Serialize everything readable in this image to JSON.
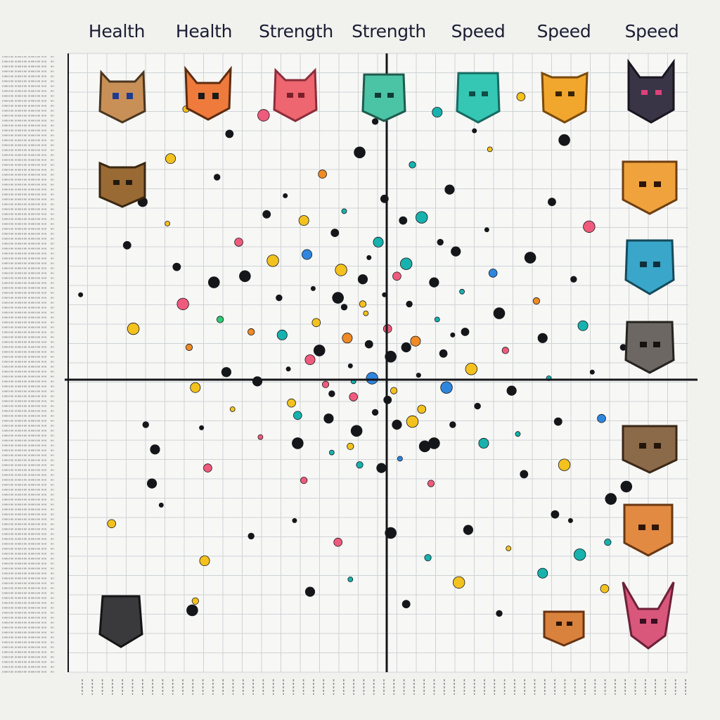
{
  "header_labels": [
    "Health",
    "Health",
    "Strength",
    "Strength",
    "Speed",
    "Speed",
    "Speed"
  ],
  "colors": {
    "background": "#f1f1ee",
    "plot_background": "#f7f7f5",
    "grid": "#cfd3d6",
    "axis": "#15161a",
    "label": "#1b1d33",
    "side_text": "#a7a7a7"
  },
  "chart_data": {
    "type": "scatter",
    "title": "",
    "xlabel": "",
    "ylabel": "",
    "xlim": [
      -10,
      10
    ],
    "ylim": [
      -10,
      10
    ],
    "grid": true,
    "legend": "none",
    "point_colors": [
      "#15161a",
      "#15161a",
      "#15161a",
      "#f4c21e",
      "#ef5b7c",
      "#17b2ae",
      "#2e86de",
      "#f08a24",
      "#8e44ad",
      "#2ecc71"
    ],
    "points_note": "dense cloud centred at origin; individual values estimated",
    "series": [
      {
        "values": [
          [
            -9.6,
            2.2,
            1
          ],
          [
            -8.1,
            3.8,
            0
          ],
          [
            -7.9,
            1.1,
            3
          ],
          [
            -7.5,
            -2.0,
            0
          ],
          [
            -7.2,
            -2.8,
            1
          ],
          [
            -6.8,
            4.5,
            3
          ],
          [
            -6.5,
            3.1,
            0
          ],
          [
            -6.3,
            1.9,
            4
          ],
          [
            -6.1,
            0.5,
            7
          ],
          [
            -5.9,
            -0.8,
            3
          ],
          [
            -5.7,
            -2.1,
            0
          ],
          [
            -5.5,
            -3.4,
            4
          ],
          [
            -5.3,
            2.6,
            0
          ],
          [
            -5.1,
            1.4,
            9
          ],
          [
            -4.9,
            -0.3,
            0
          ],
          [
            -4.7,
            -1.5,
            3
          ],
          [
            -4.5,
            3.9,
            4
          ],
          [
            -4.3,
            2.8,
            0
          ],
          [
            -4.1,
            1.0,
            7
          ],
          [
            -3.9,
            -0.6,
            0
          ],
          [
            -3.8,
            -2.4,
            4
          ],
          [
            -3.6,
            4.8,
            0
          ],
          [
            -3.4,
            3.3,
            3
          ],
          [
            -3.2,
            2.1,
            0
          ],
          [
            -3.1,
            0.9,
            5
          ],
          [
            -2.9,
            -0.2,
            0
          ],
          [
            -2.8,
            -1.3,
            3
          ],
          [
            -2.6,
            -2.6,
            0
          ],
          [
            -2.4,
            -3.8,
            4
          ],
          [
            -2.3,
            3.5,
            6
          ],
          [
            -2.1,
            2.4,
            0
          ],
          [
            -2.0,
            1.3,
            3
          ],
          [
            -1.9,
            0.4,
            0
          ],
          [
            -1.7,
            -0.7,
            4
          ],
          [
            -1.6,
            -1.8,
            0
          ],
          [
            -1.5,
            -2.9,
            5
          ],
          [
            -1.4,
            4.2,
            0
          ],
          [
            -1.2,
            3.0,
            3
          ],
          [
            -1.1,
            1.8,
            0
          ],
          [
            -1.0,
            0.8,
            7
          ],
          [
            -0.9,
            -0.1,
            0
          ],
          [
            -0.8,
            -1.1,
            4
          ],
          [
            -0.7,
            -2.2,
            0
          ],
          [
            -0.6,
            -3.3,
            5
          ],
          [
            -0.5,
            2.7,
            0
          ],
          [
            -0.4,
            1.6,
            3
          ],
          [
            -0.3,
            0.6,
            0
          ],
          [
            -0.2,
            -0.5,
            6
          ],
          [
            -0.1,
            -1.6,
            0
          ],
          [
            0.0,
            3.9,
            5
          ],
          [
            0.2,
            2.2,
            0
          ],
          [
            0.3,
            1.1,
            4
          ],
          [
            0.4,
            0.2,
            0
          ],
          [
            0.5,
            -0.9,
            3
          ],
          [
            0.6,
            -2.0,
            0
          ],
          [
            0.7,
            -3.1,
            6
          ],
          [
            0.8,
            4.6,
            0
          ],
          [
            0.9,
            3.2,
            5
          ],
          [
            1.0,
            1.9,
            0
          ],
          [
            1.2,
            0.7,
            7
          ],
          [
            1.3,
            -0.4,
            0
          ],
          [
            1.4,
            -1.5,
            3
          ],
          [
            1.5,
            -2.7,
            0
          ],
          [
            1.7,
            -3.9,
            4
          ],
          [
            1.8,
            2.6,
            0
          ],
          [
            1.9,
            1.4,
            5
          ],
          [
            2.1,
            0.3,
            0
          ],
          [
            2.2,
            -0.8,
            6
          ],
          [
            2.4,
            -2.0,
            0
          ],
          [
            2.5,
            3.6,
            0
          ],
          [
            2.7,
            2.3,
            5
          ],
          [
            2.8,
            1.0,
            0
          ],
          [
            3.0,
            -0.2,
            3
          ],
          [
            3.2,
            -1.4,
            0
          ],
          [
            3.4,
            -2.6,
            5
          ],
          [
            3.5,
            4.3,
            0
          ],
          [
            3.7,
            2.9,
            6
          ],
          [
            3.9,
            1.6,
            0
          ],
          [
            4.1,
            0.4,
            4
          ],
          [
            4.3,
            -0.9,
            0
          ],
          [
            4.5,
            -2.3,
            5
          ],
          [
            4.7,
            -3.6,
            0
          ],
          [
            4.9,
            3.4,
            0
          ],
          [
            5.1,
            2.0,
            7
          ],
          [
            5.3,
            0.8,
            0
          ],
          [
            5.5,
            -0.5,
            5
          ],
          [
            5.8,
            -1.9,
            0
          ],
          [
            6.0,
            -3.3,
            3
          ],
          [
            6.3,
            2.7,
            0
          ],
          [
            6.6,
            1.2,
            5
          ],
          [
            6.9,
            -0.3,
            0
          ],
          [
            7.2,
            -1.8,
            6
          ],
          [
            7.5,
            -4.4,
            0
          ],
          [
            7.9,
            0.5,
            0
          ],
          [
            8.3,
            -2.6,
            5
          ],
          [
            -3.0,
            5.4,
            0
          ],
          [
            -1.8,
            6.1,
            7
          ],
          [
            -0.6,
            6.8,
            0
          ],
          [
            1.1,
            6.4,
            5
          ],
          [
            2.3,
            5.6,
            0
          ],
          [
            3.6,
            6.9,
            3
          ],
          [
            5.6,
            5.2,
            0
          ],
          [
            6.8,
            4.4,
            4
          ],
          [
            -5.2,
            6.0,
            0
          ],
          [
            -6.7,
            6.6,
            3
          ],
          [
            -2.7,
            -5.1,
            0
          ],
          [
            -1.3,
            -5.8,
            4
          ],
          [
            0.4,
            -5.5,
            0
          ],
          [
            1.6,
            -6.3,
            5
          ],
          [
            2.9,
            -5.4,
            0
          ],
          [
            4.2,
            -6.0,
            3
          ],
          [
            5.7,
            -4.9,
            0
          ],
          [
            6.5,
            -6.2,
            5
          ],
          [
            -4.1,
            -5.6,
            0
          ],
          [
            -5.6,
            -6.4,
            3
          ],
          [
            -7.0,
            -4.6,
            0
          ],
          [
            -8.6,
            -5.2,
            3
          ],
          [
            -6.0,
            -8.0,
            0
          ],
          [
            -5.9,
            -7.7,
            3
          ],
          [
            -2.2,
            -7.4,
            0
          ],
          [
            -0.9,
            -7.0,
            5
          ],
          [
            0.9,
            -7.8,
            0
          ],
          [
            2.6,
            -7.1,
            3
          ],
          [
            3.9,
            -8.1,
            0
          ],
          [
            5.3,
            -6.8,
            5
          ],
          [
            6.2,
            -5.1,
            0
          ],
          [
            7.3,
            -7.3,
            3
          ],
          [
            8.0,
            -4.0,
            0
          ],
          [
            7.4,
            -5.8,
            5
          ],
          [
            -7.3,
            -3.9,
            0
          ],
          [
            -8.0,
            -7.6,
            4
          ],
          [
            -4.8,
            7.4,
            0
          ],
          [
            -3.7,
            8.0,
            4
          ],
          [
            -0.1,
            7.8,
            0
          ],
          [
            1.9,
            8.1,
            5
          ],
          [
            3.1,
            7.5,
            0
          ],
          [
            4.6,
            8.6,
            3
          ],
          [
            6.0,
            7.2,
            0
          ],
          [
            -6.2,
            8.2,
            3
          ],
          [
            -7.6,
            5.2,
            0
          ],
          [
            -1.1,
            4.9,
            5
          ],
          [
            0.2,
            5.3,
            0
          ],
          [
            1.4,
            4.7,
            5
          ],
          [
            2.0,
            3.9,
            0
          ],
          [
            -2.4,
            4.6,
            3
          ],
          [
            -0.3,
            3.4,
            0
          ],
          [
            0.6,
            2.8,
            4
          ],
          [
            -1.3,
            2.1,
            0
          ],
          [
            -0.5,
            1.9,
            3
          ],
          [
            0.9,
            0.5,
            0
          ],
          [
            -0.8,
            -0.6,
            5
          ],
          [
            0.3,
            -1.2,
            0
          ],
          [
            1.1,
            -1.9,
            3
          ],
          [
            -1.5,
            -1.0,
            0
          ],
          [
            -2.2,
            0.1,
            4
          ],
          [
            2.4,
            0.9,
            0
          ],
          [
            -2.6,
            -1.7,
            5
          ],
          [
            1.8,
            -2.6,
            0
          ],
          [
            -0.9,
            -2.7,
            3
          ],
          [
            0.1,
            -3.4,
            0
          ]
        ]
      }
    ]
  }
}
